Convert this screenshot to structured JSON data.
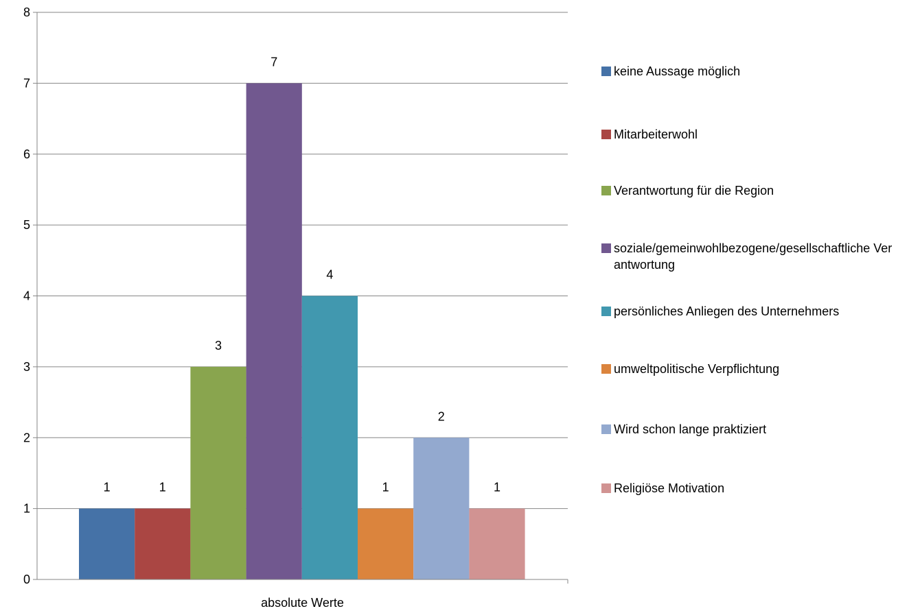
{
  "chart_data": {
    "type": "bar",
    "categories": [
      "absolute Werte"
    ],
    "series": [
      {
        "name": "keine Aussage möglich",
        "values": [
          1
        ],
        "color": "#4572A7"
      },
      {
        "name": "Mitarbeiterwohl",
        "values": [
          1
        ],
        "color": "#AA4643"
      },
      {
        "name": "Verantwortung für die Region",
        "values": [
          3
        ],
        "color": "#89A54E"
      },
      {
        "name": "soziale/gemeinwohlbezogene/gesellschaftliche Verantwortung",
        "values": [
          7
        ],
        "color": "#71588F"
      },
      {
        "name": "persönliches Anliegen des Unternehmers",
        "values": [
          4
        ],
        "color": "#4198AF"
      },
      {
        "name": "umweltpolitische Verpflichtung",
        "values": [
          1
        ],
        "color": "#DB843D"
      },
      {
        "name": "Wird schon lange praktiziert",
        "values": [
          2
        ],
        "color": "#93A9CF"
      },
      {
        "name": "Religiöse Motivation",
        "values": [
          1
        ],
        "color": "#D19392"
      }
    ],
    "yticks": [
      "0",
      "1",
      "2",
      "3",
      "4",
      "5",
      "6",
      "7",
      "8"
    ],
    "ylim": [
      0,
      8
    ],
    "grid": true,
    "legend_position": "right",
    "title": "",
    "xlabel": "",
    "ylabel": ""
  }
}
